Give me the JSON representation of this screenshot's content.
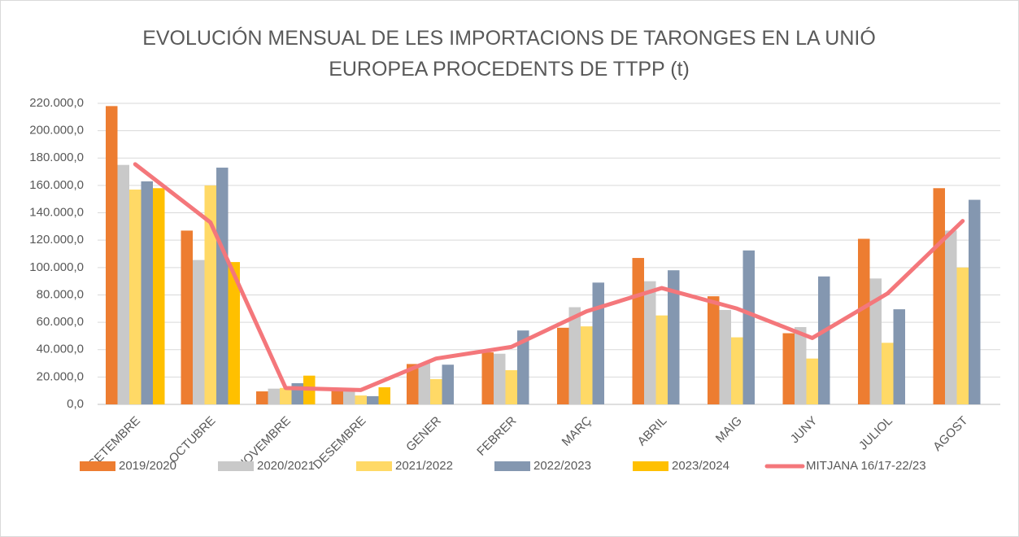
{
  "chart_data": {
    "type": "bar",
    "title": "EVOLUCIÓN MENSUAL DE LES IMPORTACIONS DE TARONGES EN LA UNIÓ EUROPEA PROCEDENTS DE TTPP (t)",
    "categories": [
      "SETEMBRE",
      "OCTUBRE",
      "NOVEMBRE",
      "DESEMBRE",
      "GENER",
      "FEBRER",
      "MARÇ",
      "ABRIL",
      "MAIG",
      "JUNY",
      "JULIOL",
      "AGOST"
    ],
    "series": [
      {
        "name": "2019/2020",
        "color": "#ed7d31",
        "type": "bar",
        "values": [
          218000,
          127000,
          9500,
          11000,
          29500,
          38000,
          56000,
          107000,
          79000,
          52000,
          121000,
          158000
        ]
      },
      {
        "name": "2020/2021",
        "color": "#c9c9c9",
        "type": "bar",
        "values": [
          175000,
          105500,
          11500,
          11000,
          30000,
          37000,
          71000,
          90000,
          69000,
          56500,
          92000,
          127000
        ]
      },
      {
        "name": "2021/2022",
        "color": "#ffd966",
        "type": "bar",
        "values": [
          157000,
          160000,
          12000,
          6500,
          18500,
          25000,
          57000,
          65000,
          49000,
          33500,
          45000,
          100000
        ]
      },
      {
        "name": "2022/2023",
        "color": "#8497b0",
        "type": "bar",
        "values": [
          163000,
          173000,
          15500,
          6000,
          29000,
          54000,
          89000,
          98000,
          112500,
          93500,
          69500,
          149500
        ]
      },
      {
        "name": "2023/2024",
        "color": "#ffc000",
        "type": "bar",
        "values": [
          158000,
          104000,
          21000,
          12500,
          null,
          null,
          null,
          null,
          null,
          null,
          null,
          null
        ]
      },
      {
        "name": "MITJANA 16/17-22/23",
        "color": "#f4777b",
        "type": "line",
        "values": [
          175500,
          133000,
          12000,
          10500,
          33500,
          42000,
          68000,
          85000,
          70000,
          48500,
          81000,
          134000
        ]
      }
    ],
    "ylim": [
      0,
      220000
    ],
    "yticks": [
      {
        "value": 0,
        "label": "0,0"
      },
      {
        "value": 20000,
        "label": "20.000,0"
      },
      {
        "value": 40000,
        "label": "40.000,0"
      },
      {
        "value": 60000,
        "label": "60.000,0"
      },
      {
        "value": 80000,
        "label": "80.000,0"
      },
      {
        "value": 100000,
        "label": "100.000,0"
      },
      {
        "value": 120000,
        "label": "120.000,0"
      },
      {
        "value": 140000,
        "label": "140.000,0"
      },
      {
        "value": 160000,
        "label": "160.000,0"
      },
      {
        "value": 180000,
        "label": "180.000,0"
      },
      {
        "value": 200000,
        "label": "200.000,0"
      },
      {
        "value": 220000,
        "label": "220.000,0"
      }
    ],
    "grid": true,
    "legend": "bottom"
  }
}
